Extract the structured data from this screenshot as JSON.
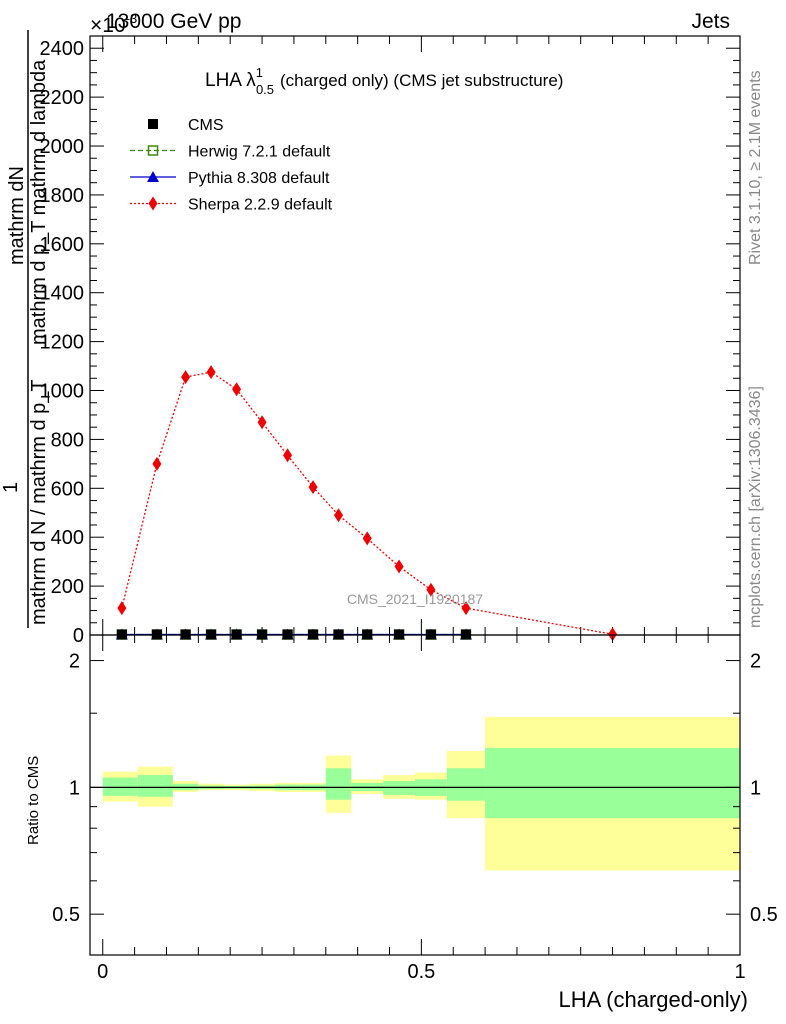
{
  "header": {
    "left_label": "13000 GeV pp",
    "right_label": "Jets",
    "exponent_label": "×10",
    "exponent_power": "-3"
  },
  "side_labels": {
    "rivet": "Rivet 3.1.10, ≥ 2.1M events",
    "mcplots": "mcplots.cern.ch [arXiv:1306.3436]"
  },
  "watermark": "CMS_2021_I1920187",
  "colors": {
    "cms": "#000000",
    "herwig": "#3a8a0f",
    "pythia": "#0000cc",
    "sherpa": "#ee0000",
    "band_inner": "#99ff99",
    "band_outer": "#ffff99"
  },
  "chart_data": [
    {
      "type": "line",
      "title_main": "LHA λ",
      "title_sup": "1",
      "title_sub": "0.5",
      "title_rest": "(charged only) (CMS jet substructure)",
      "ylabel_top": "mathrm dN",
      "ylabel_top_denom": "mathrm d p_T mathrm d lambda",
      "ylabel_left": "1",
      "ylabel_left_denom": "mathrm d N / mathrm d p_T",
      "xlim": [
        -0.02,
        1.0
      ],
      "ylim": [
        0,
        2450
      ],
      "yticks": [
        0,
        200,
        400,
        600,
        800,
        1000,
        1200,
        1400,
        1600,
        1800,
        2000,
        2200,
        2400
      ],
      "ytick_labels": [
        "0",
        "200",
        "400",
        "600",
        "800",
        "1000",
        "1200",
        "1400",
        "1600",
        "1800",
        "2000",
        "2200",
        "2400"
      ],
      "legend_position": "top-left",
      "series": [
        {
          "name": "CMS",
          "marker": "square-filled",
          "x": [
            0.03,
            0.085,
            0.13,
            0.17,
            0.21,
            0.25,
            0.29,
            0.33,
            0.37,
            0.415,
            0.465,
            0.515,
            0.57
          ],
          "y": [
            2,
            2,
            2,
            2,
            2,
            2,
            2,
            2,
            2,
            2,
            2,
            2,
            2
          ]
        },
        {
          "name": "Herwig 7.2.1 default",
          "marker": "square-open",
          "line": "dashed",
          "x": [
            0.03,
            0.085,
            0.13,
            0.17,
            0.21,
            0.25,
            0.29,
            0.33,
            0.37,
            0.415,
            0.465,
            0.515,
            0.57
          ],
          "y": [
            2,
            2,
            2,
            2,
            2,
            2,
            2,
            2,
            2,
            2,
            2,
            2,
            2
          ]
        },
        {
          "name": "Pythia 8.308 default",
          "marker": "triangle",
          "line": "solid",
          "x": [
            0.03,
            0.085,
            0.13,
            0.17,
            0.21,
            0.25,
            0.29,
            0.33,
            0.37,
            0.415,
            0.465,
            0.515,
            0.57
          ],
          "y": [
            2,
            2,
            2,
            2,
            2,
            2,
            2,
            2,
            2,
            2,
            2,
            2,
            2
          ]
        },
        {
          "name": "Sherpa 2.2.9 default",
          "marker": "diamond",
          "line": "dotted",
          "x": [
            0.03,
            0.085,
            0.13,
            0.17,
            0.21,
            0.25,
            0.29,
            0.33,
            0.37,
            0.415,
            0.465,
            0.515,
            0.57,
            0.8
          ],
          "y": [
            110,
            700,
            1055,
            1075,
            1005,
            870,
            735,
            605,
            490,
            395,
            280,
            185,
            110,
            3
          ]
        }
      ]
    },
    {
      "type": "area",
      "ylabel": "Ratio to CMS",
      "xlabel": "LHA (charged-only)",
      "xlim": [
        -0.02,
        1.0
      ],
      "ylim": [
        0.4,
        2.3
      ],
      "scale": "log",
      "yticks": [
        0.5,
        1,
        2
      ],
      "ytick_labels": [
        "0.5",
        "1",
        "2"
      ],
      "xticks": [
        0,
        0.5,
        1
      ],
      "xtick_labels": [
        "0",
        "0.5",
        "1"
      ],
      "reference_line": 1,
      "bins": [
        {
          "lo": 0.0,
          "hi": 0.055,
          "inner": [
            0.955,
            1.055
          ],
          "outer": [
            0.925,
            1.09
          ]
        },
        {
          "lo": 0.055,
          "hi": 0.11,
          "inner": [
            0.95,
            1.07
          ],
          "outer": [
            0.9,
            1.12
          ]
        },
        {
          "lo": 0.11,
          "hi": 0.15,
          "inner": [
            0.985,
            1.02
          ],
          "outer": [
            0.975,
            1.035
          ]
        },
        {
          "lo": 0.15,
          "hi": 0.19,
          "inner": [
            0.99,
            1.01
          ],
          "outer": [
            0.985,
            1.02
          ]
        },
        {
          "lo": 0.19,
          "hi": 0.23,
          "inner": [
            0.992,
            1.008
          ],
          "outer": [
            0.985,
            1.015
          ]
        },
        {
          "lo": 0.23,
          "hi": 0.27,
          "inner": [
            0.99,
            1.01
          ],
          "outer": [
            0.98,
            1.02
          ]
        },
        {
          "lo": 0.27,
          "hi": 0.31,
          "inner": [
            0.985,
            1.015
          ],
          "outer": [
            0.975,
            1.025
          ]
        },
        {
          "lo": 0.31,
          "hi": 0.35,
          "inner": [
            0.985,
            1.015
          ],
          "outer": [
            0.975,
            1.025
          ]
        },
        {
          "lo": 0.35,
          "hi": 0.39,
          "inner": [
            0.935,
            1.11
          ],
          "outer": [
            0.87,
            1.19
          ]
        },
        {
          "lo": 0.39,
          "hi": 0.44,
          "inner": [
            0.98,
            1.025
          ],
          "outer": [
            0.965,
            1.045
          ]
        },
        {
          "lo": 0.44,
          "hi": 0.49,
          "inner": [
            0.96,
            1.035
          ],
          "outer": [
            0.94,
            1.07
          ]
        },
        {
          "lo": 0.49,
          "hi": 0.54,
          "inner": [
            0.955,
            1.045
          ],
          "outer": [
            0.935,
            1.085
          ]
        },
        {
          "lo": 0.54,
          "hi": 0.6,
          "inner": [
            0.93,
            1.11
          ],
          "outer": [
            0.845,
            1.22
          ]
        },
        {
          "lo": 0.6,
          "hi": 1.0,
          "inner": [
            0.845,
            1.24
          ],
          "outer": [
            0.635,
            1.47
          ]
        }
      ]
    }
  ]
}
